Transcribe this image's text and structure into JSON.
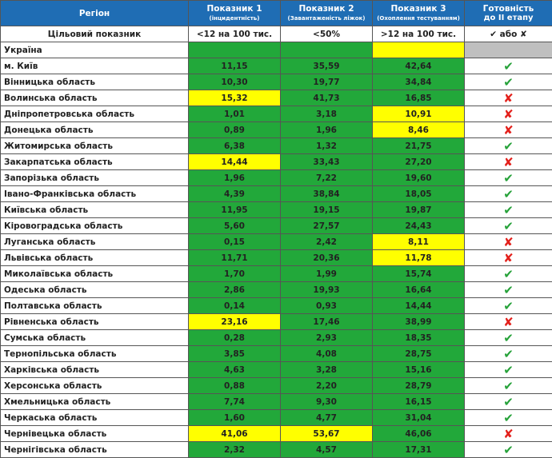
{
  "palette": {
    "header": "#1f6db4",
    "green": "#22a83a",
    "yellow": "#ffff00",
    "grey": "#bfbfbf",
    "white": "#ffffff",
    "✔": "#27a23a",
    "✘": "#e3201b"
  },
  "header": [
    {
      "title": "Регіон"
    },
    {
      "title": "Показник 1",
      "sub": "(інцидентність)"
    },
    {
      "title": "Показник 2",
      "sub": "(Завантаженість ліжок)"
    },
    {
      "title": "Показник 3",
      "sub": "(Охоплення тестуванням)"
    },
    {
      "title": "Готовність",
      "sub": "до II етапу"
    }
  ],
  "target": {
    "name": "Цільовий показник",
    "cells": [
      "<12 на 100 тис.",
      "<50%",
      ">12 на 100 тис.",
      "✔ або ✘"
    ]
  },
  "country": {
    "name": "Україна",
    "fills": [
      "green",
      "green",
      "yellow",
      "grey"
    ]
  },
  "rows": [
    {
      "name": "м. Київ",
      "cells": [
        "11,15",
        "35,59",
        "42,64"
      ],
      "fills": [
        "green",
        "green",
        "green"
      ],
      "ready": "✔"
    },
    {
      "name": "Вінницька область",
      "cells": [
        "10,30",
        "19,77",
        "34,84"
      ],
      "fills": [
        "green",
        "green",
        "green"
      ],
      "ready": "✔"
    },
    {
      "name": "Волинська область",
      "cells": [
        "15,32",
        "41,73",
        "16,85"
      ],
      "fills": [
        "yellow",
        "green",
        "green"
      ],
      "ready": "✘"
    },
    {
      "name": "Дніпропетровська область",
      "cells": [
        "1,01",
        "3,18",
        "10,91"
      ],
      "fills": [
        "green",
        "green",
        "yellow"
      ],
      "ready": "✘"
    },
    {
      "name": "Донецька область",
      "cells": [
        "0,89",
        "1,96",
        "8,46"
      ],
      "fills": [
        "green",
        "green",
        "yellow"
      ],
      "ready": "✘"
    },
    {
      "name": "Житомирська область",
      "cells": [
        "6,38",
        "1,32",
        "21,75"
      ],
      "fills": [
        "green",
        "green",
        "green"
      ],
      "ready": "✔"
    },
    {
      "name": "Закарпатська область",
      "cells": [
        "14,44",
        "33,43",
        "27,20"
      ],
      "fills": [
        "yellow",
        "green",
        "green"
      ],
      "ready": "✘"
    },
    {
      "name": "Запорізька область",
      "cells": [
        "1,96",
        "7,22",
        "19,60"
      ],
      "fills": [
        "green",
        "green",
        "green"
      ],
      "ready": "✔"
    },
    {
      "name": "Івано-Франківська область",
      "cells": [
        "4,39",
        "38,84",
        "18,05"
      ],
      "fills": [
        "green",
        "green",
        "green"
      ],
      "ready": "✔"
    },
    {
      "name": "Київська область",
      "cells": [
        "11,95",
        "19,15",
        "19,87"
      ],
      "fills": [
        "green",
        "green",
        "green"
      ],
      "ready": "✔"
    },
    {
      "name": "Кіровоградська область",
      "cells": [
        "5,60",
        "27,57",
        "24,43"
      ],
      "fills": [
        "green",
        "green",
        "green"
      ],
      "ready": "✔"
    },
    {
      "name": "Луганська область",
      "cells": [
        "0,15",
        "2,42",
        "8,11"
      ],
      "fills": [
        "green",
        "green",
        "yellow"
      ],
      "ready": "✘"
    },
    {
      "name": "Львівська область",
      "cells": [
        "11,71",
        "20,36",
        "11,78"
      ],
      "fills": [
        "green",
        "green",
        "yellow"
      ],
      "ready": "✘"
    },
    {
      "name": "Миколаївська область",
      "cells": [
        "1,70",
        "1,99",
        "15,74"
      ],
      "fills": [
        "green",
        "green",
        "green"
      ],
      "ready": "✔"
    },
    {
      "name": "Одеська область",
      "cells": [
        "2,86",
        "19,93",
        "16,64"
      ],
      "fills": [
        "green",
        "green",
        "green"
      ],
      "ready": "✔"
    },
    {
      "name": "Полтавська область",
      "cells": [
        "0,14",
        "0,93",
        "14,44"
      ],
      "fills": [
        "green",
        "green",
        "green"
      ],
      "ready": "✔"
    },
    {
      "name": "Рівненська область",
      "cells": [
        "23,16",
        "17,46",
        "38,99"
      ],
      "fills": [
        "yellow",
        "green",
        "green"
      ],
      "ready": "✘"
    },
    {
      "name": "Сумська область",
      "cells": [
        "0,28",
        "2,93",
        "18,35"
      ],
      "fills": [
        "green",
        "green",
        "green"
      ],
      "ready": "✔"
    },
    {
      "name": "Тернопільська область",
      "cells": [
        "3,85",
        "4,08",
        "28,75"
      ],
      "fills": [
        "green",
        "green",
        "green"
      ],
      "ready": "✔"
    },
    {
      "name": "Харківська область",
      "cells": [
        "4,63",
        "3,28",
        "15,16"
      ],
      "fills": [
        "green",
        "green",
        "green"
      ],
      "ready": "✔"
    },
    {
      "name": "Херсонська область",
      "cells": [
        "0,88",
        "2,20",
        "28,79"
      ],
      "fills": [
        "green",
        "green",
        "green"
      ],
      "ready": "✔"
    },
    {
      "name": "Хмельницька область",
      "cells": [
        "7,74",
        "9,30",
        "16,15"
      ],
      "fills": [
        "green",
        "green",
        "green"
      ],
      "ready": "✔"
    },
    {
      "name": "Черкаська область",
      "cells": [
        "1,60",
        "4,77",
        "31,04"
      ],
      "fills": [
        "green",
        "green",
        "green"
      ],
      "ready": "✔"
    },
    {
      "name": "Чернівецька область",
      "cells": [
        "41,06",
        "53,67",
        "46,06"
      ],
      "fills": [
        "yellow",
        "yellow",
        "green"
      ],
      "ready": "✘"
    },
    {
      "name": "Чернігівська область",
      "cells": [
        "2,32",
        "4,57",
        "17,31"
      ],
      "fills": [
        "green",
        "green",
        "green"
      ],
      "ready": "✔"
    }
  ]
}
